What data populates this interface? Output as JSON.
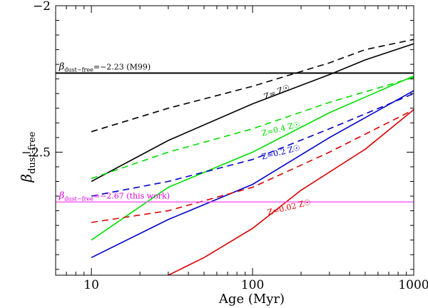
{
  "chart_data": {
    "type": "line",
    "xscale": "log",
    "xlabel": "Age (Myr)",
    "ylabel_main": "β",
    "ylabel_sub": "dust-free",
    "xlim": [
      6,
      1000
    ],
    "ylim": [
      -2.92,
      -2.0
    ],
    "xticks": [
      10,
      100,
      1000
    ],
    "xtick_labels": [
      "10",
      "100",
      "1000"
    ],
    "yticks": [
      -2.0,
      -2.5
    ],
    "ytick_labels": [
      "−2",
      "−2.5"
    ],
    "hlines": [
      {
        "name": "m99-line",
        "y": -2.23,
        "color": "#000000",
        "width": 2,
        "label_main": "β",
        "label_sub": "dust−free",
        "label_rest": "=−2.23 (M99)",
        "label_color": "#000000",
        "label_x": 6.3
      },
      {
        "name": "this-work-line",
        "y": -2.67,
        "color": "#ff44ff",
        "width": 1.2,
        "label_main": "β",
        "label_sub": "dust−free",
        "label_rest": "=−2.67 (this work)",
        "label_color": "#dd00dd",
        "label_x": 6.3
      }
    ],
    "series": [
      {
        "name": "Z=Z☉ solid",
        "metallicity": "Z☉",
        "style": "solid",
        "color": "#000000",
        "x": [
          10,
          30,
          100,
          300,
          500,
          1000
        ],
        "y": [
          -2.6,
          -2.46,
          -2.335,
          -2.235,
          -2.185,
          -2.13
        ]
      },
      {
        "name": "Z=Z☉ dashed",
        "metallicity": "Z☉",
        "style": "dashed",
        "color": "#000000",
        "x": [
          10,
          30,
          100,
          300,
          500,
          1000
        ],
        "y": [
          -2.43,
          -2.35,
          -2.275,
          -2.195,
          -2.15,
          -2.115
        ]
      },
      {
        "name": "Z=0.4Z☉ solid",
        "metallicity": "0.4Z☉",
        "style": "solid",
        "color": "#00e000",
        "x": [
          10,
          30,
          100,
          300,
          1000
        ],
        "y": [
          -2.8,
          -2.62,
          -2.5,
          -2.365,
          -2.24
        ]
      },
      {
        "name": "Z=0.4Z☉ dashed",
        "metallicity": "0.4Z☉",
        "style": "dashed",
        "color": "#00e000",
        "x": [
          10,
          30,
          100,
          300,
          1000
        ],
        "y": [
          -2.59,
          -2.5,
          -2.42,
          -2.33,
          -2.245
        ]
      },
      {
        "name": "Z=0.2Z☉ solid",
        "metallicity": "0.2Z☉",
        "style": "solid",
        "color": "#0000cc",
        "x": [
          10,
          30,
          100,
          300,
          1000
        ],
        "y": [
          -2.86,
          -2.73,
          -2.61,
          -2.45,
          -2.29
        ]
      },
      {
        "name": "Z=0.2Z☉ dashed",
        "metallicity": "0.2Z☉",
        "style": "dashed",
        "color": "#0000cc",
        "x": [
          10,
          30,
          100,
          300,
          1000
        ],
        "y": [
          -2.65,
          -2.6,
          -2.525,
          -2.42,
          -2.3
        ]
      },
      {
        "name": "Z=0.02Z☉ solid",
        "metallicity": "0.02Z☉",
        "style": "solid",
        "color": "#dd0000",
        "x": [
          30,
          50,
          100,
          200,
          500,
          1000
        ],
        "y": [
          -2.92,
          -2.86,
          -2.76,
          -2.63,
          -2.49,
          -2.355
        ]
      },
      {
        "name": "Z=0.02Z☉ dashed",
        "metallicity": "0.02Z☉",
        "style": "dashed",
        "color": "#dd0000",
        "x": [
          10,
          30,
          100,
          300,
          1000
        ],
        "y": [
          -2.74,
          -2.7,
          -2.62,
          -2.5,
          -2.355
        ]
      }
    ],
    "annotations": [
      {
        "name": "label-z-solar",
        "text": "Z= Z☉",
        "color": "#000000",
        "x": 120,
        "y": -2.32,
        "angle": -22
      },
      {
        "name": "label-z-04",
        "text": "Z=0.4 Z☉",
        "color": "#00e000",
        "x": 115,
        "y": -2.445,
        "angle": -14
      },
      {
        "name": "label-z-02",
        "text": "Z=0.2 Z☉",
        "color": "#0000cc",
        "x": 115,
        "y": -2.525,
        "angle": -14
      },
      {
        "name": "label-z-002",
        "text": "Z=0.02 Z☉",
        "color": "#dd0000",
        "x": 125,
        "y": -2.715,
        "angle": -14
      }
    ]
  }
}
